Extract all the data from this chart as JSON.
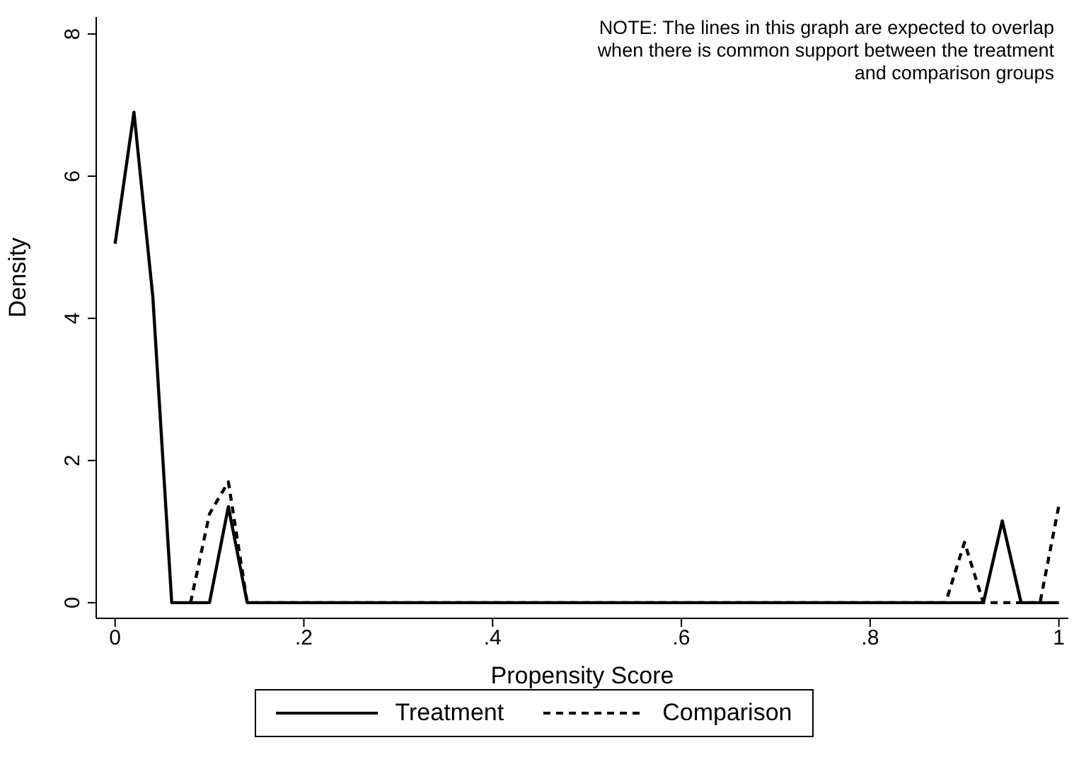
{
  "chart_data": {
    "type": "line",
    "xlabel": "Propensity Score",
    "ylabel": "Density",
    "annotations": [
      "NOTE: The lines in this graph are expected to overlap\nwhen there is common support between the treatment\nand comparison groups"
    ],
    "series": [
      {
        "name": "Treatment",
        "color": "#000000",
        "line_style": "solid",
        "x": [
          0,
          0.02,
          0.04,
          0.06,
          0.08,
          0.1,
          0.12,
          0.14,
          0.16,
          0.9,
          0.92,
          0.94,
          0.96,
          0.98,
          1
        ],
        "values": [
          5.05,
          6.9,
          4.3,
          0,
          0,
          0,
          1.35,
          0,
          0,
          0,
          0,
          1.15,
          0,
          0,
          0
        ]
      },
      {
        "name": "Comparison",
        "color": "#000000",
        "line_style": "dashed",
        "x": [
          0.08,
          0.1,
          0.12,
          0.14,
          0.16,
          0.86,
          0.88,
          0.9,
          0.92,
          0.94,
          0.96,
          0.98,
          1
        ],
        "values": [
          0,
          1.25,
          1.7,
          0,
          0,
          0,
          0,
          0.85,
          0,
          0,
          0,
          0,
          1.37
        ]
      }
    ],
    "xlim": [
      -0.02,
      1.01
    ],
    "xticks": [
      0,
      {
        "value": 0.2,
        "label": ".2"
      },
      {
        "value": 0.4,
        "label": ".4"
      },
      {
        "value": 0.6,
        "label": ".6"
      },
      {
        "value": 0.8,
        "label": ".8"
      },
      1
    ],
    "ylim": [
      -0.22,
      8.24
    ],
    "yticks": [
      0,
      2,
      4,
      6,
      8
    ],
    "grid": false,
    "legend": "bottom",
    "marker": "none"
  }
}
